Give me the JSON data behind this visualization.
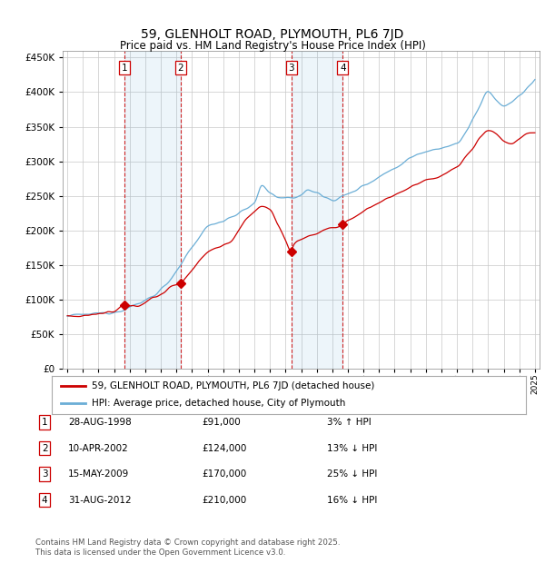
{
  "title": "59, GLENHOLT ROAD, PLYMOUTH, PL6 7JD",
  "subtitle": "Price paid vs. HM Land Registry's House Price Index (HPI)",
  "ylim": [
    0,
    460000
  ],
  "yticks": [
    0,
    50000,
    100000,
    150000,
    200000,
    250000,
    300000,
    350000,
    400000,
    450000
  ],
  "year_start": 1995,
  "year_end": 2025,
  "hpi_color": "#6baed6",
  "price_color": "#cc0000",
  "transactions": [
    {
      "id": 1,
      "date": "28-AUG-1998",
      "price": 91000,
      "hpi_rel": "3% ↑ HPI",
      "year": 1998.65
    },
    {
      "id": 2,
      "date": "10-APR-2002",
      "price": 124000,
      "hpi_rel": "13% ↓ HPI",
      "year": 2002.27
    },
    {
      "id": 3,
      "date": "15-MAY-2009",
      "price": 170000,
      "hpi_rel": "25% ↓ HPI",
      "year": 2009.37
    },
    {
      "id": 4,
      "date": "31-AUG-2012",
      "price": 210000,
      "hpi_rel": "16% ↓ HPI",
      "year": 2012.67
    }
  ],
  "legend_label_price": "59, GLENHOLT ROAD, PLYMOUTH, PL6 7JD (detached house)",
  "legend_label_hpi": "HPI: Average price, detached house, City of Plymouth",
  "footnote": "Contains HM Land Registry data © Crown copyright and database right 2025.\nThis data is licensed under the Open Government Licence v3.0.",
  "background_color": "#ffffff",
  "plot_bg_color": "#ffffff",
  "grid_color": "#c8c8c8"
}
